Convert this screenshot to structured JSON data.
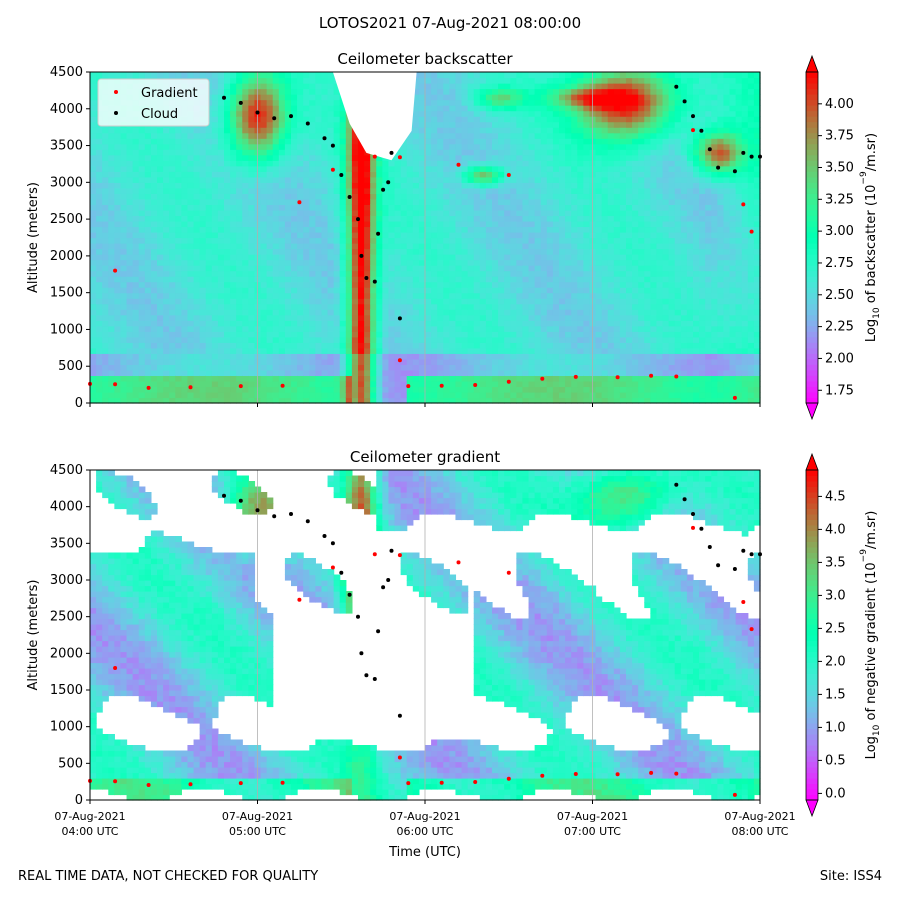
{
  "suptitle": "LOTOS2021 07-Aug-2021 08:00:00",
  "footer": {
    "left": "REAL TIME DATA, NOT CHECKED FOR QUALITY",
    "right": "Site: ISS4"
  },
  "colors": {
    "gradient_marker": "#ff0000",
    "cloud_marker": "#000000",
    "colormap": "rainbow"
  },
  "chart_data": [
    {
      "type": "heatmap",
      "title": "Ceilometer backscatter",
      "ylabel": "Altitude (meters)",
      "xlabel": "",
      "ylim": [
        0,
        4500
      ],
      "yticks": [
        "0",
        "500",
        "1000",
        "1500",
        "2000",
        "2500",
        "3000",
        "3500",
        "4000",
        "4500"
      ],
      "xlim_hours": [
        4,
        8
      ],
      "x_ticklabels_shown": false,
      "grid": "vertical at hourly ticks",
      "legend": {
        "placement": "top-left",
        "entries": [
          "Gradient",
          "Cloud"
        ]
      },
      "colorbar": {
        "label_main": "Log",
        "label_sub": "10",
        "label_rest": " of backscatter (10",
        "label_sup": "−9",
        "label_end": "/m.sr)",
        "range": [
          1.65,
          4.25
        ],
        "ticks": [
          "1.75",
          "2.00",
          "2.25",
          "2.50",
          "2.75",
          "3.00",
          "3.25",
          "3.50",
          "3.75",
          "4.00"
        ],
        "extend": "both"
      },
      "series": [
        {
          "name": "Gradient",
          "marker": "red dot",
          "points": [
            [
              4.0,
              260
            ],
            [
              4.15,
              255
            ],
            [
              4.35,
              205
            ],
            [
              4.6,
              215
            ],
            [
              4.9,
              230
            ],
            [
              5.15,
              235
            ],
            [
              5.85,
              580
            ],
            [
              5.9,
              230
            ],
            [
              6.1,
              235
            ],
            [
              6.3,
              245
            ],
            [
              6.5,
              290
            ],
            [
              6.7,
              330
            ],
            [
              6.9,
              355
            ],
            [
              7.15,
              350
            ],
            [
              7.35,
              370
            ],
            [
              7.5,
              360
            ],
            [
              4.15,
              1800
            ],
            [
              5.25,
              2730
            ],
            [
              5.45,
              3170
            ],
            [
              5.7,
              3350
            ],
            [
              5.85,
              3340
            ],
            [
              6.2,
              3240
            ],
            [
              6.5,
              3100
            ],
            [
              7.6,
              3710
            ],
            [
              7.9,
              2700
            ],
            [
              7.95,
              2330
            ],
            [
              7.85,
              70
            ]
          ]
        },
        {
          "name": "Cloud",
          "marker": "black dot",
          "points": [
            [
              4.8,
              4150
            ],
            [
              4.9,
              4080
            ],
            [
              5.0,
              3950
            ],
            [
              5.1,
              3870
            ],
            [
              5.2,
              3900
            ],
            [
              5.3,
              3800
            ],
            [
              5.4,
              3600
            ],
            [
              5.45,
              3500
            ],
            [
              5.5,
              3100
            ],
            [
              5.55,
              2800
            ],
            [
              5.6,
              2500
            ],
            [
              5.62,
              2000
            ],
            [
              5.65,
              1700
            ],
            [
              5.7,
              1650
            ],
            [
              5.72,
              2300
            ],
            [
              5.75,
              2900
            ],
            [
              5.78,
              3000
            ],
            [
              5.8,
              3400
            ],
            [
              5.85,
              1150
            ],
            [
              7.5,
              4300
            ],
            [
              7.55,
              4100
            ],
            [
              7.6,
              3900
            ],
            [
              7.65,
              3700
            ],
            [
              7.7,
              3450
            ],
            [
              7.75,
              3200
            ],
            [
              7.85,
              3150
            ],
            [
              7.9,
              3400
            ],
            [
              7.95,
              3350
            ],
            [
              8.0,
              3350
            ]
          ]
        }
      ]
    },
    {
      "type": "heatmap",
      "title": "Ceilometer gradient",
      "ylabel": "Altitude (meters)",
      "xlabel": "Time (UTC)",
      "ylim": [
        0,
        4500
      ],
      "yticks": [
        "0",
        "500",
        "1000",
        "1500",
        "2000",
        "2500",
        "3000",
        "3500",
        "4000",
        "4500"
      ],
      "xlim_hours": [
        4,
        8
      ],
      "xticks": [
        {
          "line1": "07-Aug-2021",
          "line2": "04:00 UTC"
        },
        {
          "line1": "07-Aug-2021",
          "line2": "05:00 UTC"
        },
        {
          "line1": "07-Aug-2021",
          "line2": "06:00 UTC"
        },
        {
          "line1": "07-Aug-2021",
          "line2": "07:00 UTC"
        },
        {
          "line1": "07-Aug-2021",
          "line2": "08:00 UTC"
        }
      ],
      "grid": "vertical at hourly ticks",
      "colorbar": {
        "label_main": "Log",
        "label_sub": "10",
        "label_rest": " of negative gradient (10",
        "label_sup": "−9",
        "label_end": "/m.sr)",
        "range": [
          -0.1,
          4.9
        ],
        "ticks": [
          "0.0",
          "0.5",
          "1.0",
          "1.5",
          "2.0",
          "2.5",
          "3.0",
          "3.5",
          "4.0",
          "4.5"
        ],
        "extend": "both"
      },
      "series": [
        {
          "name": "Gradient",
          "marker": "red dot",
          "points": [
            [
              4.0,
              260
            ],
            [
              4.15,
              255
            ],
            [
              4.35,
              205
            ],
            [
              4.6,
              215
            ],
            [
              4.9,
              230
            ],
            [
              5.15,
              235
            ],
            [
              5.85,
              580
            ],
            [
              5.9,
              230
            ],
            [
              6.1,
              235
            ],
            [
              6.3,
              245
            ],
            [
              6.5,
              290
            ],
            [
              6.7,
              330
            ],
            [
              6.9,
              355
            ],
            [
              7.15,
              350
            ],
            [
              7.35,
              370
            ],
            [
              7.5,
              360
            ],
            [
              4.15,
              1800
            ],
            [
              5.25,
              2730
            ],
            [
              5.45,
              3170
            ],
            [
              5.7,
              3350
            ],
            [
              5.85,
              3340
            ],
            [
              6.2,
              3240
            ],
            [
              6.5,
              3100
            ],
            [
              7.6,
              3710
            ],
            [
              7.9,
              2700
            ],
            [
              7.95,
              2330
            ],
            [
              7.85,
              70
            ]
          ]
        },
        {
          "name": "Cloud",
          "marker": "black dot",
          "points": [
            [
              4.8,
              4150
            ],
            [
              4.9,
              4080
            ],
            [
              5.0,
              3950
            ],
            [
              5.1,
              3870
            ],
            [
              5.2,
              3900
            ],
            [
              5.3,
              3800
            ],
            [
              5.4,
              3600
            ],
            [
              5.45,
              3500
            ],
            [
              5.5,
              3100
            ],
            [
              5.55,
              2800
            ],
            [
              5.6,
              2500
            ],
            [
              5.62,
              2000
            ],
            [
              5.65,
              1700
            ],
            [
              5.7,
              1650
            ],
            [
              5.72,
              2300
            ],
            [
              5.75,
              2900
            ],
            [
              5.78,
              3000
            ],
            [
              5.8,
              3400
            ],
            [
              5.85,
              1150
            ],
            [
              7.5,
              4300
            ],
            [
              7.55,
              4100
            ],
            [
              7.6,
              3900
            ],
            [
              7.65,
              3700
            ],
            [
              7.7,
              3450
            ],
            [
              7.75,
              3200
            ],
            [
              7.85,
              3150
            ],
            [
              7.9,
              3400
            ],
            [
              7.95,
              3350
            ],
            [
              8.0,
              3350
            ]
          ]
        }
      ]
    }
  ]
}
